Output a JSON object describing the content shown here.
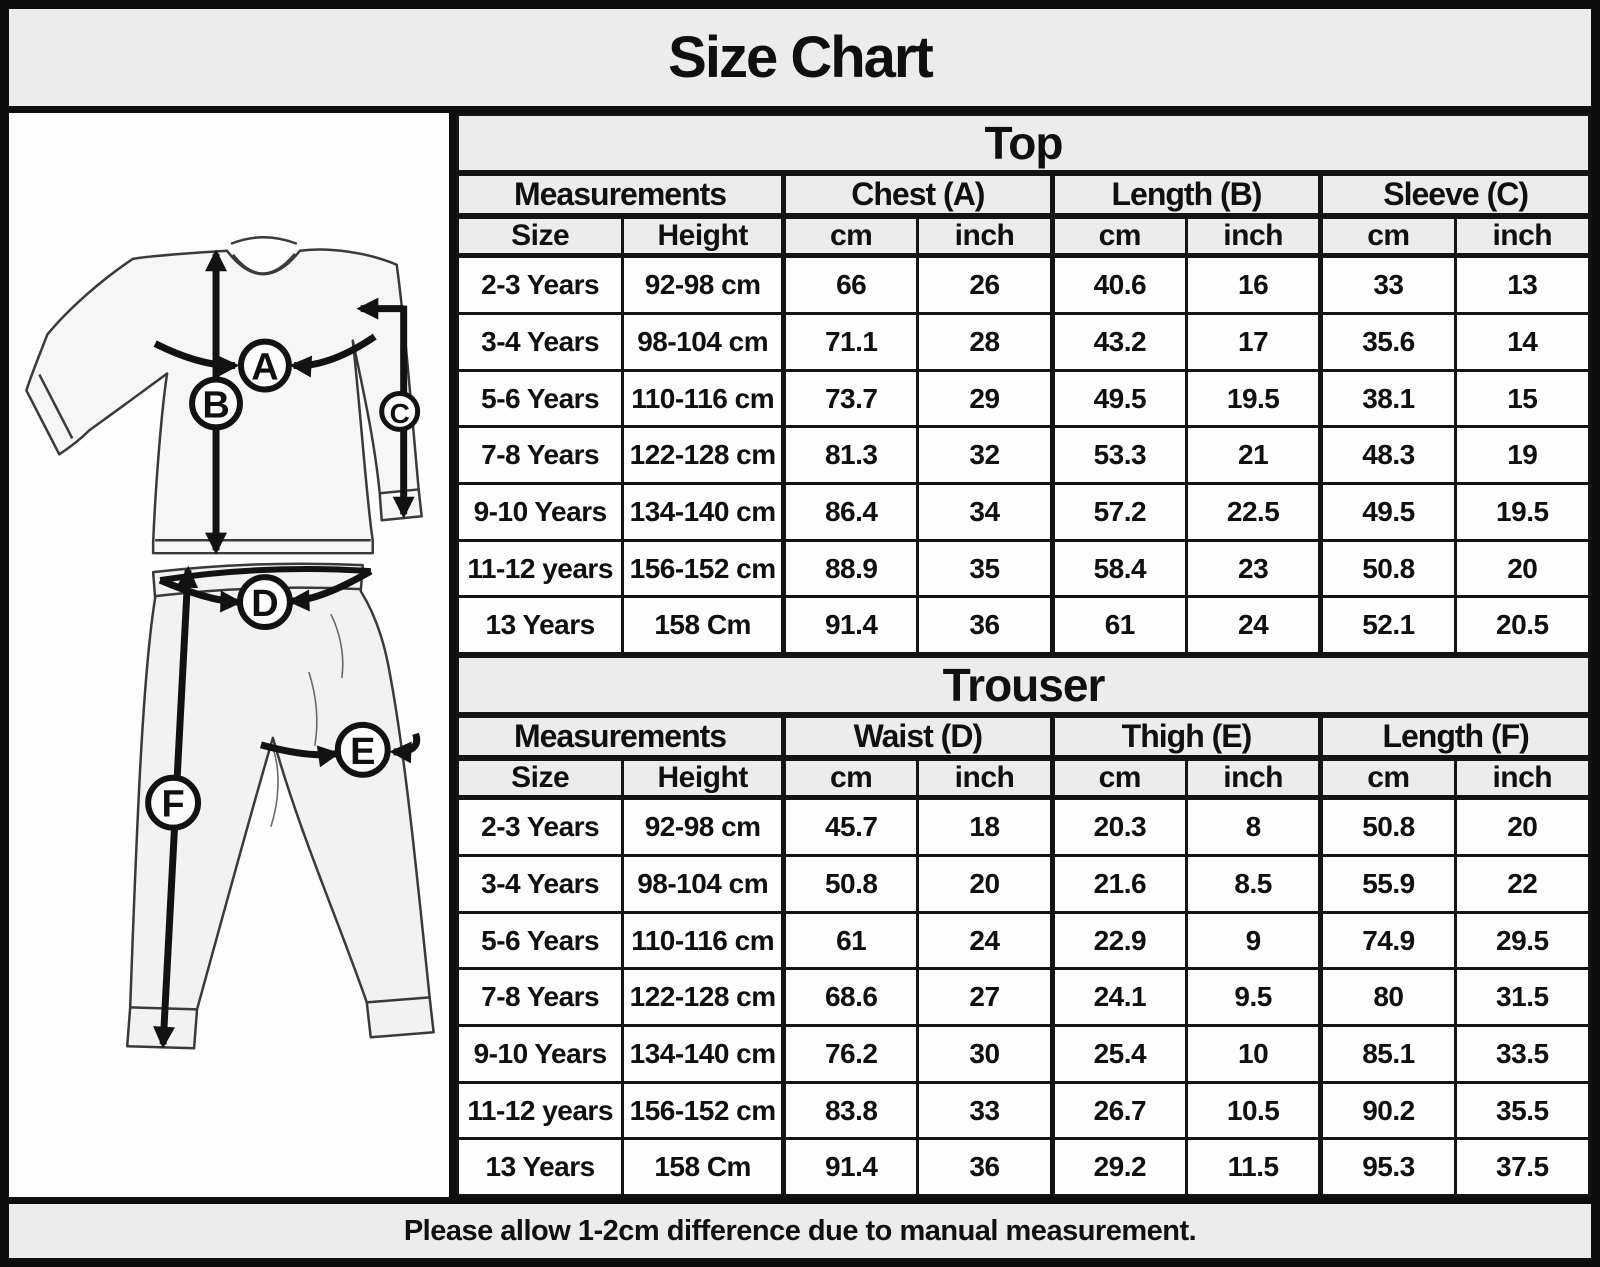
{
  "title": "Size Chart",
  "footer_note": "Please allow 1-2cm difference due to manual measurement.",
  "colors": {
    "background": "#ececec",
    "cell_background": "#fdfdfd",
    "border": "#0d0d0d",
    "text": "#101010"
  },
  "illustration": {
    "description": "pajama set line drawing with measurement arrows",
    "labels": [
      "A",
      "B",
      "C",
      "D",
      "E",
      "F"
    ]
  },
  "chart_data": [
    {
      "type": "table",
      "title": "Top",
      "column_groups": [
        "Measurements",
        "Chest (A)",
        "Length (B)",
        "Sleeve (C)"
      ],
      "columns": [
        "Size",
        "Height",
        "cm",
        "inch",
        "cm",
        "inch",
        "cm",
        "inch"
      ],
      "rows": [
        [
          "2-3 Years",
          "92-98 cm",
          "66",
          "26",
          "40.6",
          "16",
          "33",
          "13"
        ],
        [
          "3-4 Years",
          "98-104 cm",
          "71.1",
          "28",
          "43.2",
          "17",
          "35.6",
          "14"
        ],
        [
          "5-6 Years",
          "110-116 cm",
          "73.7",
          "29",
          "49.5",
          "19.5",
          "38.1",
          "15"
        ],
        [
          "7-8 Years",
          "122-128 cm",
          "81.3",
          "32",
          "53.3",
          "21",
          "48.3",
          "19"
        ],
        [
          "9-10 Years",
          "134-140 cm",
          "86.4",
          "34",
          "57.2",
          "22.5",
          "49.5",
          "19.5"
        ],
        [
          "11-12 years",
          "156-152 cm",
          "88.9",
          "35",
          "58.4",
          "23",
          "50.8",
          "20"
        ],
        [
          "13 Years",
          "158 Cm",
          "91.4",
          "36",
          "61",
          "24",
          "52.1",
          "20.5"
        ]
      ]
    },
    {
      "type": "table",
      "title": "Trouser",
      "column_groups": [
        "Measurements",
        "Waist (D)",
        "Thigh (E)",
        "Length (F)"
      ],
      "columns": [
        "Size",
        "Height",
        "cm",
        "inch",
        "cm",
        "inch",
        "cm",
        "inch"
      ],
      "rows": [
        [
          "2-3 Years",
          "92-98 cm",
          "45.7",
          "18",
          "20.3",
          "8",
          "50.8",
          "20"
        ],
        [
          "3-4 Years",
          "98-104 cm",
          "50.8",
          "20",
          "21.6",
          "8.5",
          "55.9",
          "22"
        ],
        [
          "5-6 Years",
          "110-116 cm",
          "61",
          "24",
          "22.9",
          "9",
          "74.9",
          "29.5"
        ],
        [
          "7-8 Years",
          "122-128 cm",
          "68.6",
          "27",
          "24.1",
          "9.5",
          "80",
          "31.5"
        ],
        [
          "9-10 Years",
          "134-140 cm",
          "76.2",
          "30",
          "25.4",
          "10",
          "85.1",
          "33.5"
        ],
        [
          "11-12 years",
          "156-152 cm",
          "83.8",
          "33",
          "26.7",
          "10.5",
          "90.2",
          "35.5"
        ],
        [
          "13 Years",
          "158 Cm",
          "91.4",
          "36",
          "29.2",
          "11.5",
          "95.3",
          "37.5"
        ]
      ]
    }
  ]
}
